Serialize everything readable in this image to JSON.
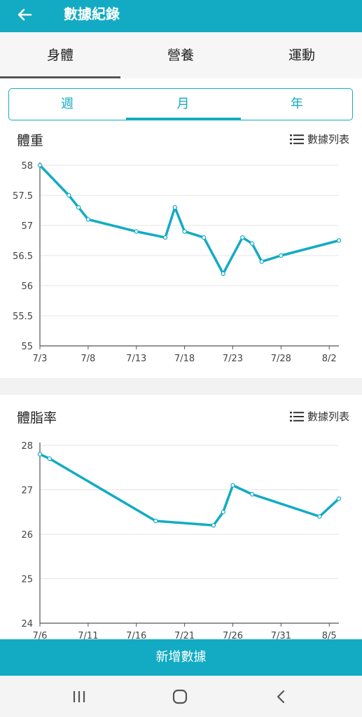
{
  "app": {
    "title": "數據紀錄"
  },
  "tabs": [
    {
      "label": "身體"
    },
    {
      "label": "營養"
    },
    {
      "label": "運動"
    }
  ],
  "period_tabs": [
    {
      "label": "週"
    },
    {
      "label": "月"
    },
    {
      "label": "年"
    }
  ],
  "active_tab": "身體",
  "active_period": "月",
  "list_link_label": "數據列表",
  "add_button_label": "新增數據",
  "colors": {
    "accent": "#12abc3"
  },
  "icons": [
    "back-arrow-icon",
    "list-icon",
    "recent-apps-icon",
    "home-icon",
    "back-icon"
  ],
  "chart_data": [
    {
      "type": "line",
      "title": "體重",
      "xlabel": "",
      "ylabel": "",
      "x_ticks": [
        "7/3",
        "7/8",
        "7/13",
        "7/18",
        "7/23",
        "7/28",
        "8/2"
      ],
      "x_tick_days": [
        0,
        5,
        10,
        15,
        20,
        25,
        30
      ],
      "y_ticks": [
        "58",
        "57.5",
        "57",
        "56.5",
        "56",
        "55.5",
        "55"
      ],
      "ylim": [
        55,
        58
      ],
      "xlim_days": [
        0,
        31
      ],
      "grid": true,
      "series": [
        {
          "points": [
            {
              "x": "7/3",
              "x_day": 0,
              "y": 58.0
            },
            {
              "x": "7/6",
              "x_day": 3,
              "y": 57.5
            },
            {
              "x": "7/7",
              "x_day": 4,
              "y": 57.3
            },
            {
              "x": "7/8",
              "x_day": 5,
              "y": 57.1
            },
            {
              "x": "7/13",
              "x_day": 10,
              "y": 56.9
            },
            {
              "x": "7/16",
              "x_day": 13,
              "y": 56.8
            },
            {
              "x": "7/17",
              "x_day": 14,
              "y": 57.3
            },
            {
              "x": "7/18",
              "x_day": 15,
              "y": 56.9
            },
            {
              "x": "7/20",
              "x_day": 17,
              "y": 56.8
            },
            {
              "x": "7/22",
              "x_day": 19,
              "y": 56.2
            },
            {
              "x": "7/24",
              "x_day": 21,
              "y": 56.8
            },
            {
              "x": "7/25",
              "x_day": 22,
              "y": 56.7
            },
            {
              "x": "7/26",
              "x_day": 23,
              "y": 56.4
            },
            {
              "x": "7/28",
              "x_day": 25,
              "y": 56.5
            },
            {
              "x": "8/3",
              "x_day": 31,
              "y": 56.75
            }
          ]
        }
      ]
    },
    {
      "type": "line",
      "title": "體脂率",
      "xlabel": "",
      "ylabel": "",
      "x_ticks": [
        "7/6",
        "7/11",
        "7/16",
        "7/21",
        "7/26",
        "7/31",
        "8/5"
      ],
      "x_tick_days": [
        0,
        5,
        10,
        15,
        20,
        25,
        30
      ],
      "y_ticks": [
        "28",
        "27",
        "26",
        "25",
        "24"
      ],
      "ylim": [
        24,
        28
      ],
      "xlim_days": [
        0,
        31
      ],
      "grid": true,
      "series": [
        {
          "points": [
            {
              "x": "7/6",
              "x_day": 0,
              "y": 27.8
            },
            {
              "x": "7/7",
              "x_day": 1,
              "y": 27.7
            },
            {
              "x": "7/18",
              "x_day": 12,
              "y": 26.3
            },
            {
              "x": "7/24",
              "x_day": 18,
              "y": 26.2
            },
            {
              "x": "7/25",
              "x_day": 19,
              "y": 26.5
            },
            {
              "x": "7/26",
              "x_day": 20,
              "y": 27.1
            },
            {
              "x": "7/28",
              "x_day": 22,
              "y": 26.9
            },
            {
              "x": "8/4",
              "x_day": 29,
              "y": 26.4
            },
            {
              "x": "8/6",
              "x_day": 31,
              "y": 26.8
            }
          ]
        }
      ]
    }
  ]
}
